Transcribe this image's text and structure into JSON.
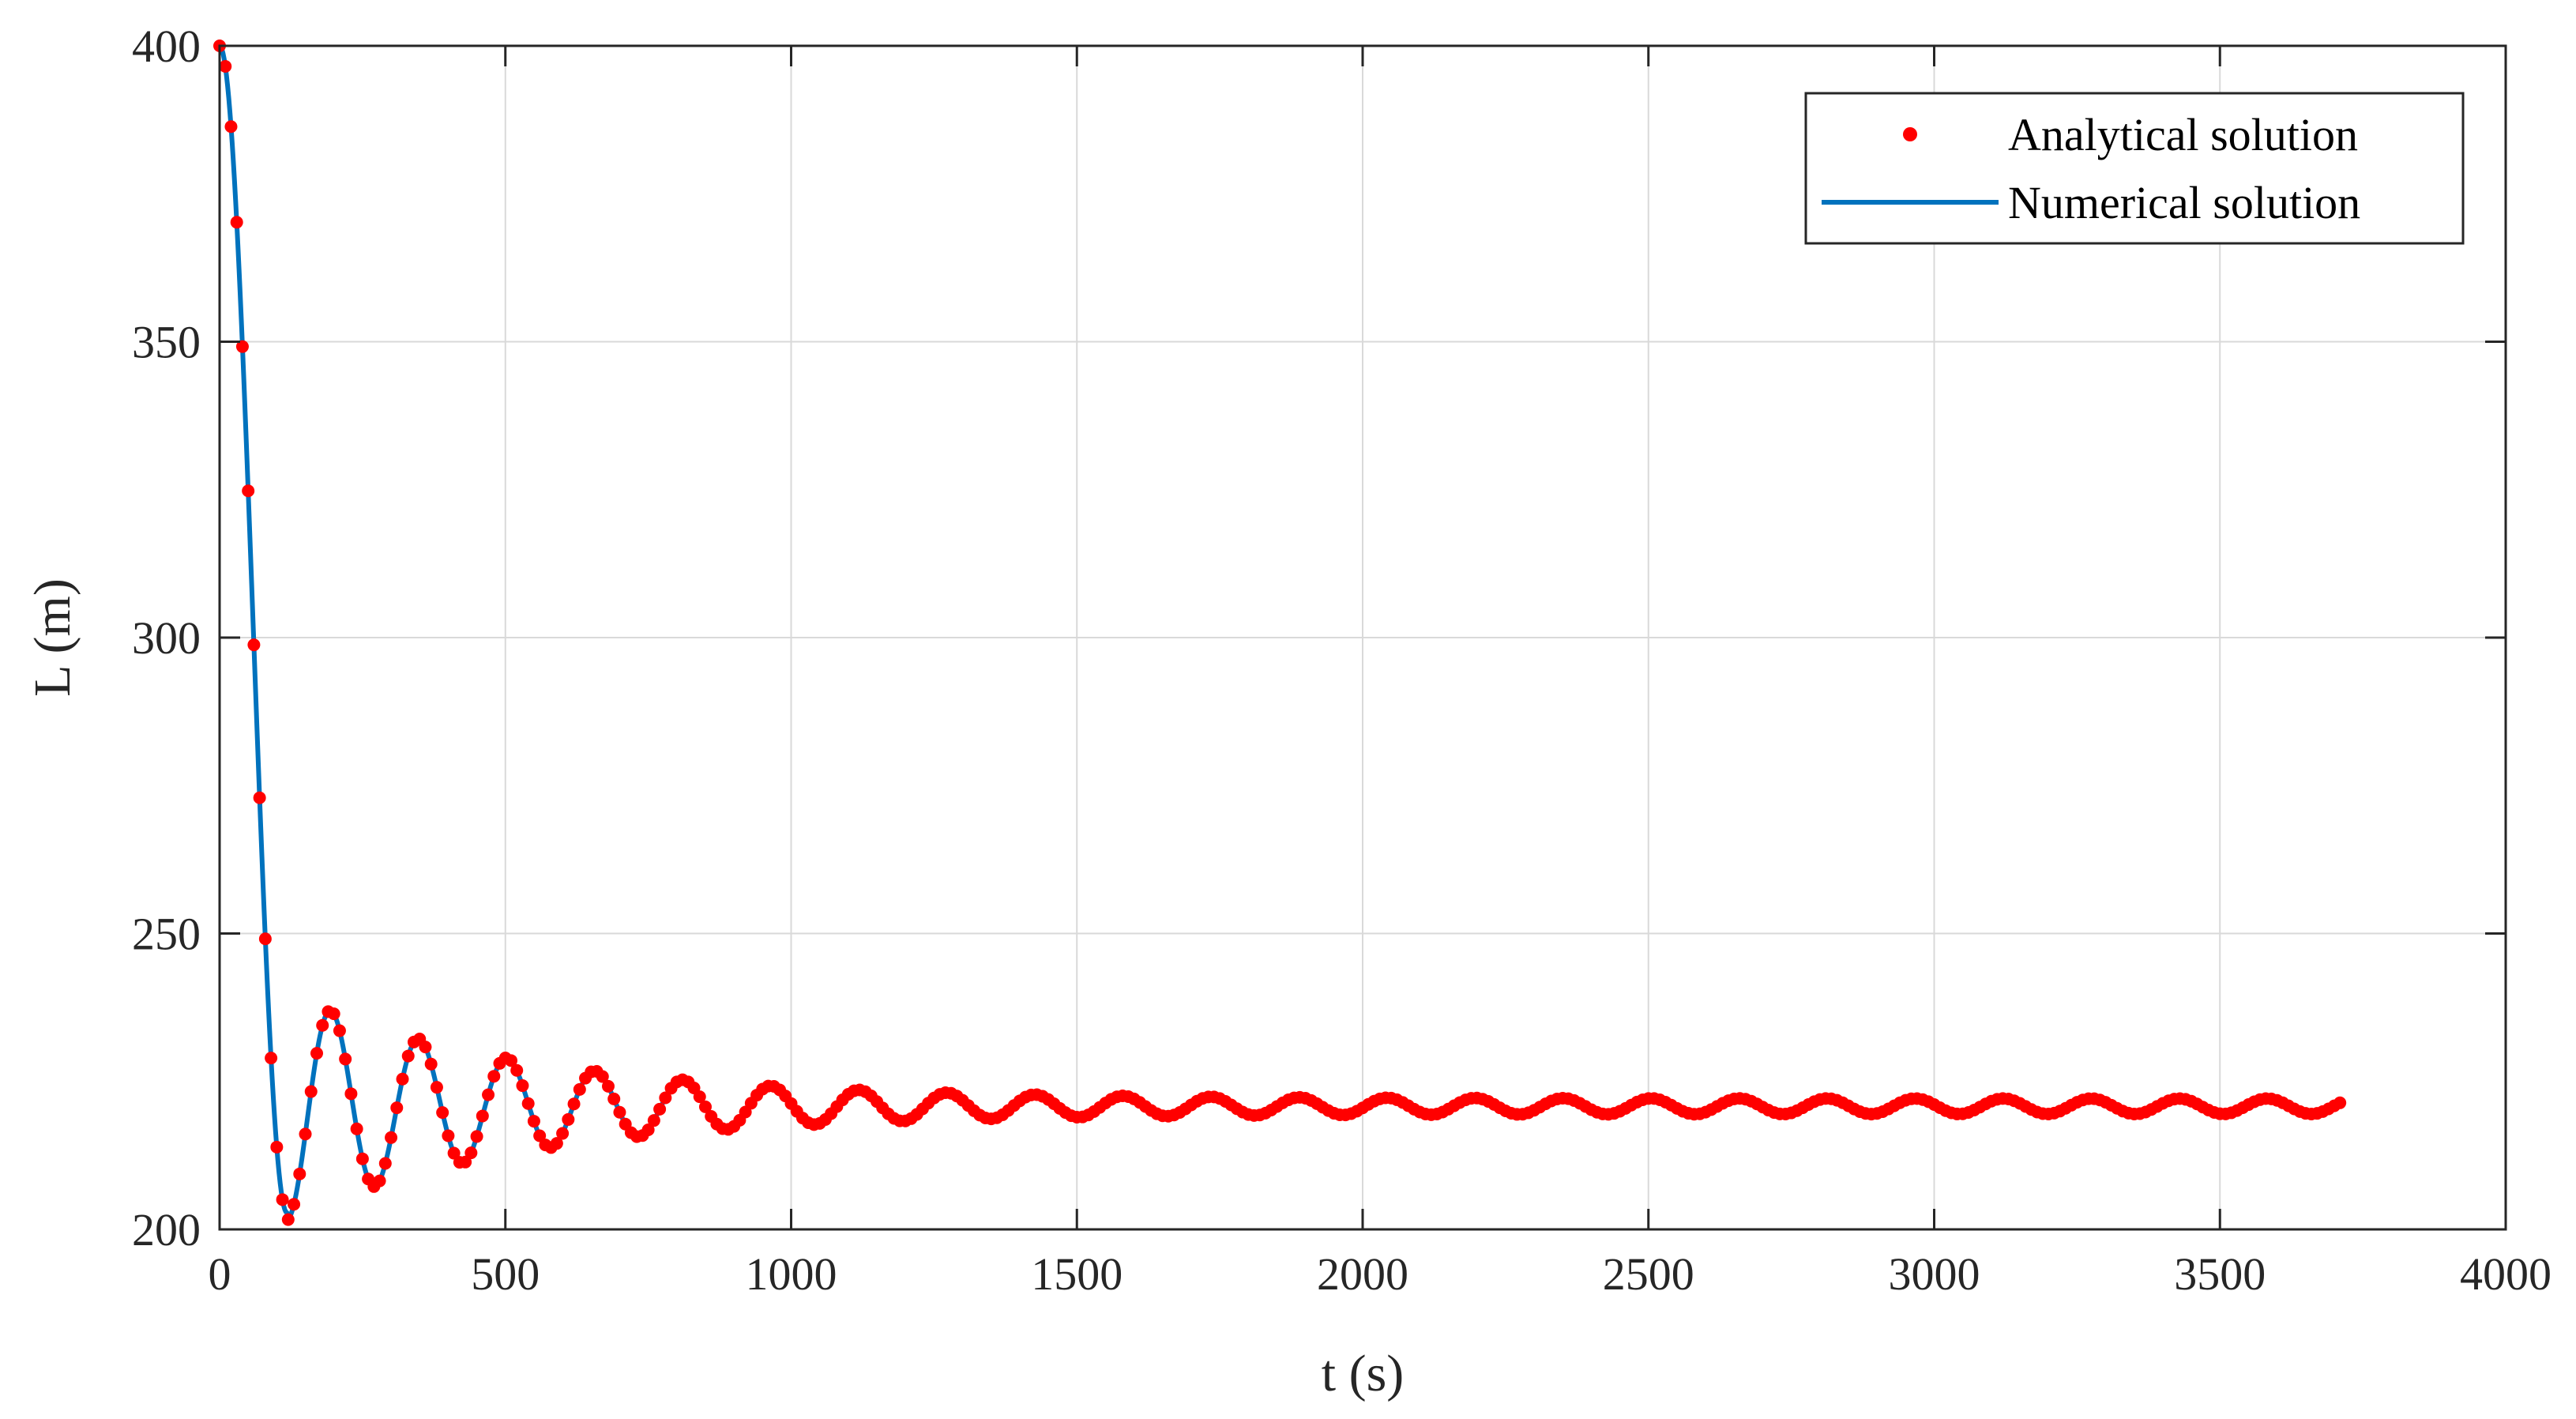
{
  "chart_data": {
    "type": "line",
    "title": "",
    "xlabel": "t (s)",
    "ylabel": "L (m)",
    "xlim": [
      0,
      4000
    ],
    "ylim": [
      200,
      400
    ],
    "xticks": [
      0,
      500,
      1000,
      1500,
      2000,
      2500,
      3000,
      3500,
      4000
    ],
    "xtick_labels": [
      "0",
      "500",
      "1000",
      "1500",
      "2000",
      "2500",
      "3000",
      "3500",
      "4000"
    ],
    "yticks": [
      200,
      250,
      300,
      350,
      400
    ],
    "ytick_labels": [
      "200",
      "250",
      "300",
      "350",
      "400"
    ],
    "grid": true,
    "legend_position": "top-right",
    "series": [
      {
        "name": "Analytical solution",
        "style": "markers",
        "color": "#ff0000",
        "x_start": 0,
        "x_end": 3710,
        "x_step": 10
      },
      {
        "name": "Numerical solution",
        "style": "line",
        "color": "#0072bd",
        "x_start": 0,
        "x_end": 3710,
        "x_step": 2
      }
    ],
    "key_points": [
      {
        "x": 0,
        "y": 400
      },
      {
        "x": 125,
        "y": 203
      },
      {
        "x": 200,
        "y": 232
      },
      {
        "x": 280,
        "y": 214
      },
      {
        "x": 355,
        "y": 227
      },
      {
        "x": 430,
        "y": 216
      },
      {
        "x": 505,
        "y": 225
      },
      {
        "x": 3710,
        "y": 220
      }
    ],
    "model": {
      "L0": 400,
      "L_final": 220.8,
      "drop_time": 118,
      "overshoot_amplitude": 18,
      "decay_rate": 0.0025,
      "oscillation_period": 154,
      "residual_amplitude": 1.3
    }
  },
  "colors": {
    "analytical": "#ff0000",
    "numerical": "#0072bd",
    "grid": "#d9d9d9",
    "axis": "#262626"
  }
}
